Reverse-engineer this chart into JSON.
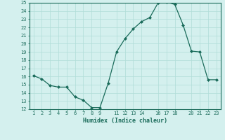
{
  "x": [
    1,
    2,
    3,
    4,
    5,
    6,
    7,
    8,
    9,
    10,
    11,
    12,
    13,
    14,
    15,
    16,
    17,
    18,
    19,
    20,
    21,
    22,
    23
  ],
  "y": [
    16.1,
    15.7,
    14.9,
    14.7,
    14.7,
    13.5,
    13.1,
    12.2,
    12.2,
    15.2,
    19.0,
    20.6,
    21.8,
    22.7,
    23.2,
    25.0,
    25.1,
    24.8,
    22.3,
    19.1,
    19.0,
    15.6,
    15.6
  ],
  "xlim": [
    0.5,
    23.5
  ],
  "ylim": [
    12,
    25
  ],
  "yticks": [
    12,
    13,
    14,
    15,
    16,
    17,
    18,
    19,
    20,
    21,
    22,
    23,
    24,
    25
  ],
  "xticks": [
    1,
    2,
    3,
    4,
    5,
    6,
    7,
    8,
    9,
    11,
    12,
    13,
    14,
    16,
    17,
    18,
    20,
    21,
    22,
    23
  ],
  "xlabel": "Humidex (Indice chaleur)",
  "line_color": "#1a6b5a",
  "marker_color": "#1a6b5a",
  "bg_color": "#d4f0ee",
  "grid_color": "#b0ddd8"
}
